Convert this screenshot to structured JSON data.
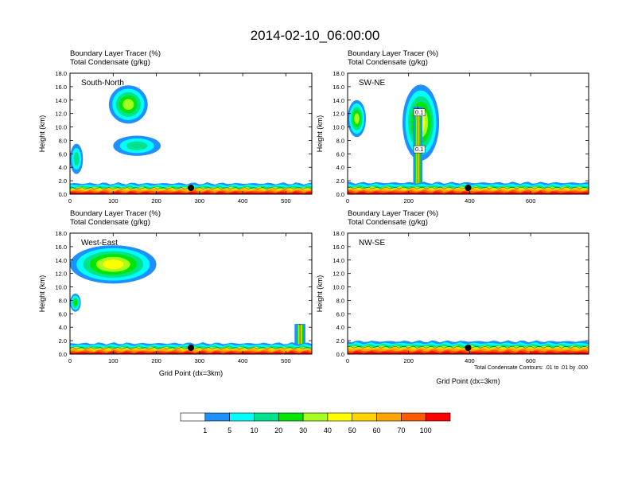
{
  "figure": {
    "title": "2014-02-10_06:00:00",
    "footnote": "Total Condensate Contours: .01 to .01 by .000"
  },
  "colorbar": {
    "labels": [
      "1",
      "5",
      "10",
      "20",
      "30",
      "40",
      "50",
      "60",
      "70",
      "100"
    ],
    "colors": [
      "#ffffff",
      "#1e90ff",
      "#00ffff",
      "#00e38c",
      "#00e600",
      "#a6ff1e",
      "#ffff00",
      "#ffd200",
      "#ffa500",
      "#ff5a00",
      "#ff0000"
    ]
  },
  "chart_data": [
    {
      "type": "heatmap",
      "panel": "South-North",
      "title_line1": "Boundary Layer Tracer   (%)",
      "title_line2": "Total Condensate   (g/kg)",
      "xlabel": "",
      "ylabel": "Height (km)",
      "xlim": [
        0,
        560
      ],
      "ylim": [
        0,
        18
      ],
      "xticks": [
        0,
        100,
        200,
        300,
        400,
        500
      ],
      "yticks": [
        "0.0",
        "2.0",
        "4.0",
        "6.0",
        "8.0",
        "10.0",
        "12.0",
        "14.0",
        "16.0",
        "18.0"
      ],
      "marker_x": 280,
      "features": [
        {
          "kind": "cloud",
          "levels": [
            1,
            5,
            10,
            20,
            30
          ],
          "x0": 90,
          "x1": 180,
          "z0": 10.5,
          "z1": 16.2
        },
        {
          "kind": "cloud",
          "levels": [
            1,
            5,
            10
          ],
          "x0": 100,
          "x1": 210,
          "z0": 5.7,
          "z1": 8.7
        },
        {
          "kind": "cloud",
          "levels": [
            1,
            5,
            10
          ],
          "x0": 0,
          "x1": 30,
          "z0": 3.0,
          "z1": 7.5
        },
        {
          "kind": "pbl",
          "top_km": 1.6
        }
      ]
    },
    {
      "type": "heatmap",
      "panel": "SW-NE",
      "title_line1": "Boundary Layer Tracer   (%)",
      "title_line2": "Total Condensate   (g/kg)",
      "xlabel": "",
      "ylabel": "Height (km)",
      "xlim": [
        0,
        790
      ],
      "ylim": [
        0,
        18
      ],
      "xticks": [
        0,
        200,
        400,
        600
      ],
      "yticks": [
        "0.0",
        "2.0",
        "4.0",
        "6.0",
        "8.0",
        "10.0",
        "12.0",
        "14.0",
        "16.0",
        "18.0"
      ],
      "marker_x": 395,
      "contour_labels": [
        "0.1",
        "0.1"
      ],
      "features": [
        {
          "kind": "cloud",
          "levels": [
            1,
            5,
            10,
            20,
            30
          ],
          "x0": 0,
          "x1": 60,
          "z0": 8.5,
          "z1": 14.0
        },
        {
          "kind": "cloud",
          "levels": [
            1,
            5,
            10,
            20,
            30,
            40
          ],
          "x0": 180,
          "x1": 300,
          "z0": 5.0,
          "z1": 16.3
        },
        {
          "kind": "tower",
          "x0": 215,
          "x1": 245,
          "z0": 1.0,
          "z1": 13.0
        },
        {
          "kind": "pbl",
          "top_km": 1.7
        }
      ]
    },
    {
      "type": "heatmap",
      "panel": "West-East",
      "title_line1": "Boundary Layer Tracer   (%)",
      "title_line2": "Total Condensate   (g/kg)",
      "xlabel": "Grid Point (dx=3km)",
      "ylabel": "Height (km)",
      "xlim": [
        0,
        560
      ],
      "ylim": [
        0,
        18
      ],
      "xticks": [
        0,
        100,
        200,
        300,
        400,
        500
      ],
      "yticks": [
        "0.0",
        "2.0",
        "4.0",
        "6.0",
        "8.0",
        "10.0",
        "12.0",
        "14.0",
        "16.0",
        "18.0"
      ],
      "marker_x": 280,
      "features": [
        {
          "kind": "cloud",
          "levels": [
            1,
            5,
            10,
            20,
            30,
            40
          ],
          "x0": 0,
          "x1": 200,
          "z0": 10.5,
          "z1": 16.2
        },
        {
          "kind": "cloud",
          "levels": [
            1,
            5,
            10,
            20
          ],
          "x0": 0,
          "x1": 25,
          "z0": 6.3,
          "z1": 9.0
        },
        {
          "kind": "tower",
          "x0": 520,
          "x1": 545,
          "z0": 1.0,
          "z1": 4.5
        },
        {
          "kind": "pbl",
          "top_km": 1.6
        }
      ]
    },
    {
      "type": "heatmap",
      "panel": "NW-SE",
      "title_line1": "Boundary Layer Tracer   (%)",
      "title_line2": "Total Condensate   (g/kg)",
      "xlabel": "Grid Point (dx=3km)",
      "ylabel": "Height (km)",
      "xlim": [
        0,
        790
      ],
      "ylim": [
        0,
        18
      ],
      "xticks": [
        0,
        200,
        400,
        600
      ],
      "yticks": [
        "0.0",
        "2.0",
        "4.0",
        "6.0",
        "8.0",
        "10.0",
        "12.0",
        "14.0",
        "16.0",
        "18.0"
      ],
      "marker_x": 395,
      "features": [
        {
          "kind": "pbl",
          "top_km": 1.9
        }
      ]
    }
  ]
}
